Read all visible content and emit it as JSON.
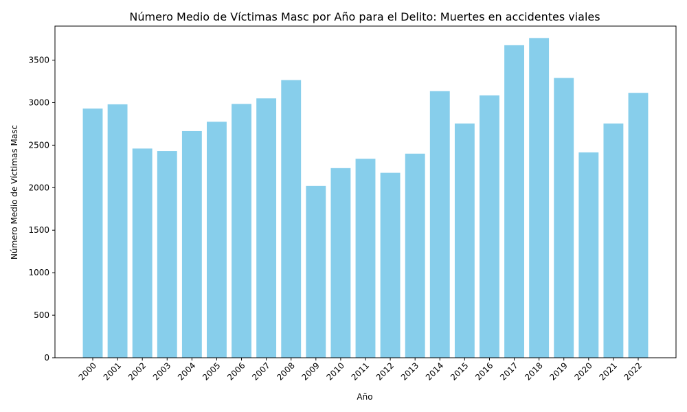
{
  "chart_data": {
    "type": "bar",
    "title": "Número Medio de Víctimas Masc por Año para el Delito: Muertes en accidentes viales",
    "xlabel": "Año",
    "ylabel": "Número Medio de Víctimas Masc",
    "categories": [
      "2000",
      "2001",
      "2002",
      "2003",
      "2004",
      "2005",
      "2006",
      "2007",
      "2008",
      "2009",
      "2010",
      "2011",
      "2012",
      "2013",
      "2014",
      "2015",
      "2016",
      "2017",
      "2018",
      "2019",
      "2020",
      "2021",
      "2022"
    ],
    "values": [
      2930,
      2980,
      2460,
      2430,
      2665,
      2775,
      2985,
      3050,
      3265,
      2020,
      2230,
      2340,
      2175,
      2400,
      3135,
      2755,
      3085,
      3675,
      3760,
      3290,
      2415,
      2755,
      3115
    ],
    "ylim": [
      0,
      3900
    ],
    "yticks": [
      0,
      500,
      1000,
      1500,
      2000,
      2500,
      3000,
      3500
    ],
    "bar_color": "#87CEEB",
    "grid": false,
    "legend": "none"
  }
}
